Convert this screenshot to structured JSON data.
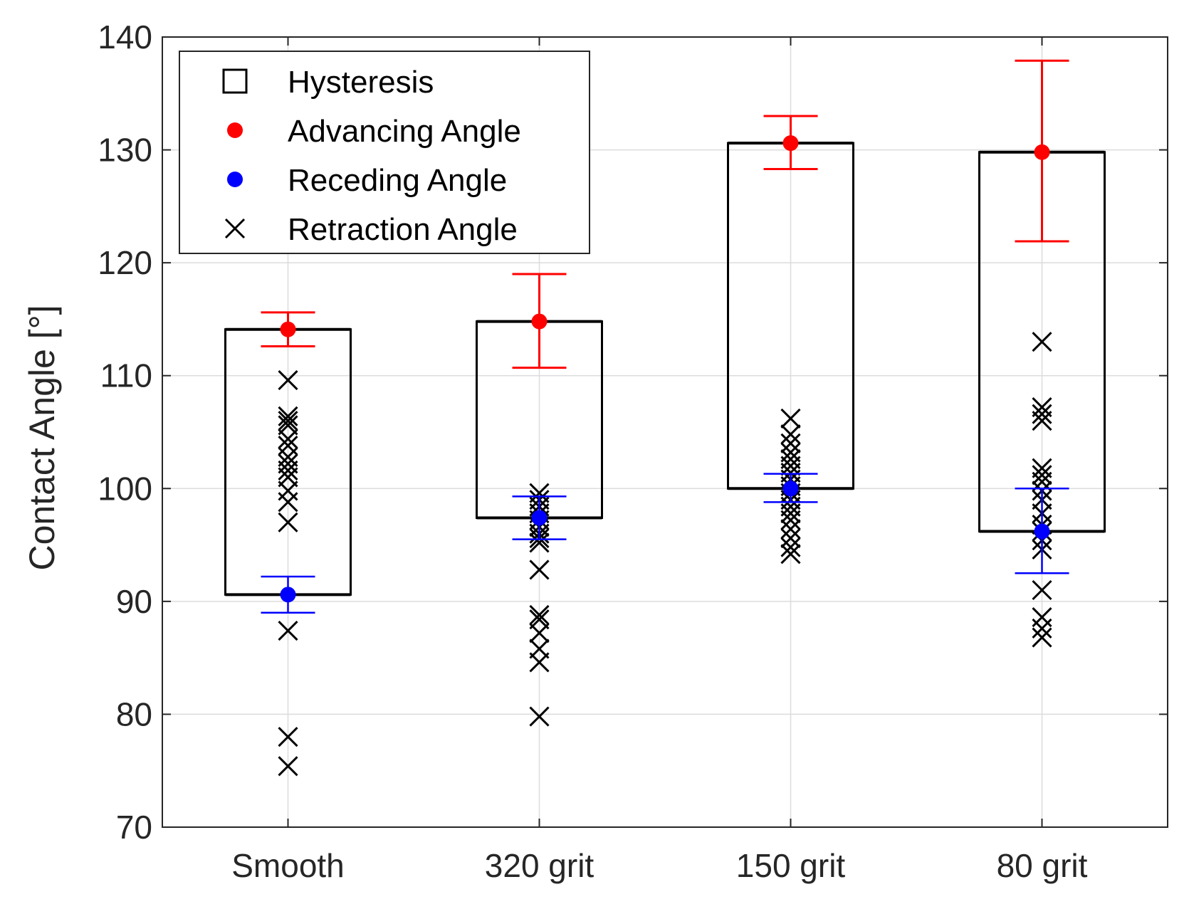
{
  "chart_data": {
    "type": "scatter",
    "title": "",
    "xlabel": "",
    "ylabel": "Contact Angle [°]",
    "ylim": [
      70,
      140
    ],
    "yticks": [
      70,
      80,
      90,
      100,
      110,
      120,
      130,
      140
    ],
    "categories": [
      "Smooth",
      "320 grit",
      "150 grit",
      "80 grit"
    ],
    "legend": [
      {
        "key": "hysteresis",
        "label": "Hysteresis",
        "marker": "square-outline"
      },
      {
        "key": "advancing",
        "label": "Advancing Angle",
        "marker": "filled-circle"
      },
      {
        "key": "receding",
        "label": "Receding Angle",
        "marker": "filled-circle"
      },
      {
        "key": "retraction",
        "label": "Retraction Angle",
        "marker": "x-cross"
      }
    ],
    "legend_position": "top-left",
    "grid": true,
    "colors": {
      "advancing": "#ff0000",
      "receding": "#0000ff",
      "retraction": "#000000",
      "hysteresis": "#000000"
    },
    "series": [
      {
        "category": "Smooth",
        "advancing": {
          "mean": 114.1,
          "low": 112.6,
          "high": 115.6
        },
        "receding": {
          "mean": 90.6,
          "low": 89.0,
          "high": 92.2
        },
        "hysteresis": {
          "bottom": 90.6,
          "top": 114.1
        },
        "retraction": [
          109.6,
          106.4,
          106.0,
          105.6,
          104.4,
          103.8,
          102.8,
          102.2,
          101.6,
          101.0,
          99.8,
          98.8,
          97.0,
          87.4,
          78.0,
          75.4
        ]
      },
      {
        "category": "320 grit",
        "advancing": {
          "mean": 114.8,
          "low": 110.7,
          "high": 119.0
        },
        "receding": {
          "mean": 97.4,
          "low": 95.5,
          "high": 99.3
        },
        "hysteresis": {
          "bottom": 97.4,
          "top": 114.8
        },
        "retraction": [
          99.6,
          99.0,
          98.4,
          97.8,
          97.2,
          96.6,
          96.0,
          95.6,
          95.2,
          92.8,
          88.8,
          88.4,
          87.2,
          85.8,
          84.6,
          79.8
        ]
      },
      {
        "category": "150 grit",
        "advancing": {
          "mean": 130.6,
          "low": 128.3,
          "high": 133.0
        },
        "receding": {
          "mean": 100.0,
          "low": 98.8,
          "high": 101.3
        },
        "hysteresis": {
          "bottom": 100.0,
          "top": 130.6
        },
        "retraction": [
          106.2,
          104.8,
          104.0,
          103.2,
          102.6,
          102.0,
          101.4,
          100.8,
          100.2,
          99.6,
          99.0,
          98.4,
          97.8,
          97.2,
          96.4,
          95.6,
          94.8,
          94.2
        ]
      },
      {
        "category": "80 grit",
        "advancing": {
          "mean": 129.8,
          "low": 121.9,
          "high": 137.9
        },
        "receding": {
          "mean": 96.2,
          "low": 92.5,
          "high": 100.0
        },
        "hysteresis": {
          "bottom": 96.2,
          "top": 129.8
        },
        "retraction": [
          113.0,
          107.2,
          106.6,
          106.0,
          101.8,
          101.2,
          100.6,
          99.8,
          99.0,
          97.8,
          96.8,
          96.2,
          95.4,
          94.6,
          91.0,
          88.6,
          87.6,
          86.8
        ]
      }
    ]
  }
}
